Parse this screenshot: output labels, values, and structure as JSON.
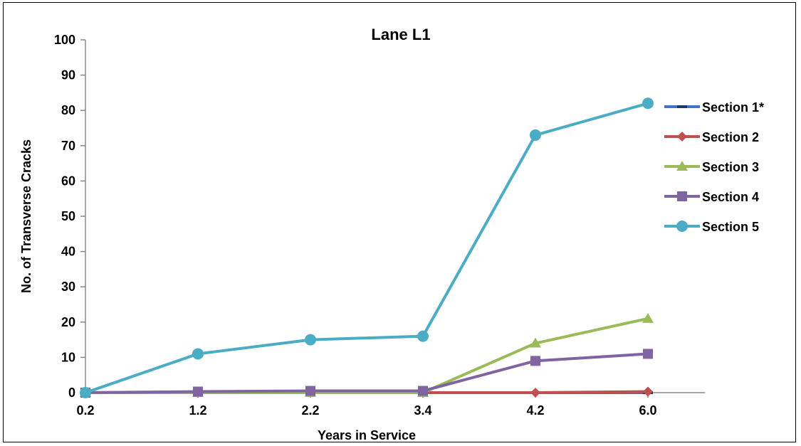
{
  "chart_data": {
    "type": "line",
    "title": "Lane L1",
    "xlabel": "Years in Service",
    "ylabel": "No. of Transverse  Cracks",
    "categories": [
      "0.2",
      "1.2",
      "2.2",
      "3.4",
      "4.2",
      "6.0"
    ],
    "ylim": [
      0,
      100
    ],
    "yticks": [
      "0",
      "10",
      "20",
      "30",
      "40",
      "50",
      "60",
      "70",
      "80",
      "90",
      "100"
    ],
    "grid": false,
    "legend_position": "right",
    "series": [
      {
        "name": "Section 1*",
        "color": "#4472c4",
        "marker": "dash",
        "values": [
          0,
          0,
          0,
          0,
          0,
          0
        ]
      },
      {
        "name": "Section 2",
        "color": "#c0504d",
        "marker": "diamond",
        "values": [
          0,
          0,
          0,
          0,
          0,
          0.3
        ]
      },
      {
        "name": "Section 3",
        "color": "#9bbb59",
        "marker": "triangle",
        "values": [
          0,
          0,
          0,
          0,
          14,
          21
        ]
      },
      {
        "name": "Section 4",
        "color": "#8064a2",
        "marker": "square",
        "values": [
          0,
          0.3,
          0.5,
          0.5,
          9,
          11
        ]
      },
      {
        "name": "Section 5",
        "color": "#4bacc6",
        "marker": "circle",
        "values": [
          0,
          11,
          15,
          16,
          73,
          82
        ]
      }
    ]
  }
}
